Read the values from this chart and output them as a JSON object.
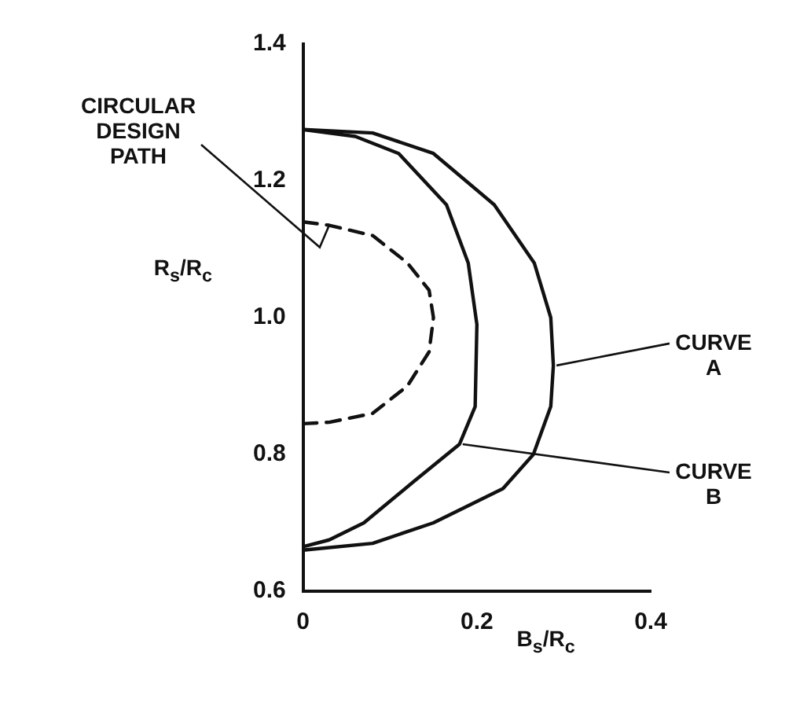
{
  "chart_data": {
    "type": "line",
    "xlabel": "B$_{s}$/R$_{c}$",
    "ylabel": "R$_{s}$/R$_{c}$",
    "xlim": [
      0,
      0.4
    ],
    "ylim": [
      0.6,
      1.4
    ],
    "xticks": [
      0,
      0.2,
      0.4
    ],
    "yticks": [
      0.6,
      0.8,
      {
        "value": 1.0,
        "label": "1.0"
      },
      1.2,
      1.4
    ],
    "grid": false,
    "legend": false,
    "marker": "none",
    "series": [
      {
        "name": "CIRCULAR DESIGN PATH",
        "color": "#111111",
        "line_style": "dashed",
        "x": [
          0,
          0.03,
          0.08,
          0.12,
          0.145,
          0.15,
          0.145,
          0.12,
          0.08,
          0.03,
          0
        ],
        "values": [
          1.14,
          1.135,
          1.12,
          1.08,
          1.04,
          1.0,
          0.95,
          0.9,
          0.86,
          0.847,
          0.845
        ]
      },
      {
        "name": "CURVE A",
        "color": "#111111",
        "line_style": "solid",
        "x": [
          0,
          0.08,
          0.15,
          0.22,
          0.266,
          0.285,
          0.288,
          0.285,
          0.265,
          0.23,
          0.15,
          0.08,
          0
        ],
        "values": [
          1.275,
          1.27,
          1.24,
          1.165,
          1.08,
          1.0,
          0.93,
          0.87,
          0.8,
          0.75,
          0.7,
          0.67,
          0.66
        ]
      },
      {
        "name": "CURVE B",
        "color": "#111111",
        "line_style": "solid",
        "x": [
          0,
          0.06,
          0.11,
          0.165,
          0.19,
          0.2,
          0.198,
          0.18,
          0.127,
          0.07,
          0.03,
          0
        ],
        "values": [
          1.275,
          1.265,
          1.24,
          1.165,
          1.08,
          0.99,
          0.87,
          0.815,
          0.76,
          0.7,
          0.675,
          0.665
        ]
      }
    ]
  }
}
